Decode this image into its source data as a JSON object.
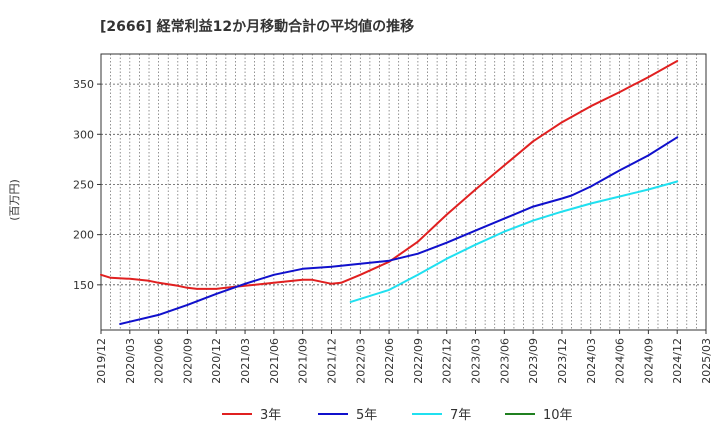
{
  "chart_data": {
    "type": "line",
    "title": "[2666]  経常利益12か月移動合計の平均値の推移",
    "ylabel": "(百万円)",
    "xlabel": "",
    "ylim": [
      105,
      380
    ],
    "yticks": [
      150,
      200,
      250,
      300,
      350
    ],
    "x_tick_labels": [
      "2019/12",
      "2020/03",
      "2020/06",
      "2020/09",
      "2020/12",
      "2021/03",
      "2021/06",
      "2021/09",
      "2021/12",
      "2022/03",
      "2022/06",
      "2022/09",
      "2022/12",
      "2023/03",
      "2023/06",
      "2023/09",
      "2023/12",
      "2024/03",
      "2024/06",
      "2024/09",
      "2024/12",
      "2025/03"
    ],
    "grid": true,
    "legend_position": "bottom",
    "series": [
      {
        "name": "3年",
        "color": "#e02020",
        "x": [
          "2019/12",
          "2020/01",
          "2020/03",
          "2020/05",
          "2020/06",
          "2020/08",
          "2020/09",
          "2020/10",
          "2020/12",
          "2021/01",
          "2021/03",
          "2021/06",
          "2021/09",
          "2021/10",
          "2021/11",
          "2021/12",
          "2022/01",
          "2022/03",
          "2022/06",
          "2022/09",
          "2022/12",
          "2023/03",
          "2023/06",
          "2023/09",
          "2023/12",
          "2024/03",
          "2024/06",
          "2024/09",
          "2024/12"
        ],
        "values": [
          160,
          157,
          156,
          154,
          152,
          149,
          147,
          146,
          146,
          147,
          149,
          152,
          155,
          155,
          153,
          151,
          152,
          160,
          173,
          193,
          220,
          245,
          269,
          293,
          312,
          328,
          342,
          357,
          373
        ]
      },
      {
        "name": "5年",
        "color": "#1010cc",
        "x": [
          "2020/02",
          "2020/06",
          "2020/09",
          "2020/12",
          "2021/03",
          "2021/06",
          "2021/09",
          "2021/12",
          "2022/03",
          "2022/06",
          "2022/09",
          "2022/12",
          "2023/03",
          "2023/06",
          "2023/09",
          "2023/12",
          "2024/01",
          "2024/03",
          "2024/06",
          "2024/09",
          "2024/12"
        ],
        "values": [
          111,
          120,
          130,
          141,
          151,
          160,
          166,
          168,
          171,
          174,
          181,
          192,
          204,
          216,
          228,
          236,
          239,
          248,
          264,
          279,
          297
        ]
      },
      {
        "name": "7年",
        "color": "#20e0f0",
        "x": [
          "2022/02",
          "2022/06",
          "2022/09",
          "2022/12",
          "2023/03",
          "2023/06",
          "2023/09",
          "2023/12",
          "2024/03",
          "2024/06",
          "2024/09",
          "2024/12"
        ],
        "values": [
          133,
          145,
          160,
          176,
          190,
          203,
          214,
          223,
          231,
          238,
          245,
          253
        ]
      },
      {
        "name": "10年",
        "color": "#208020",
        "x": [],
        "values": []
      }
    ]
  }
}
